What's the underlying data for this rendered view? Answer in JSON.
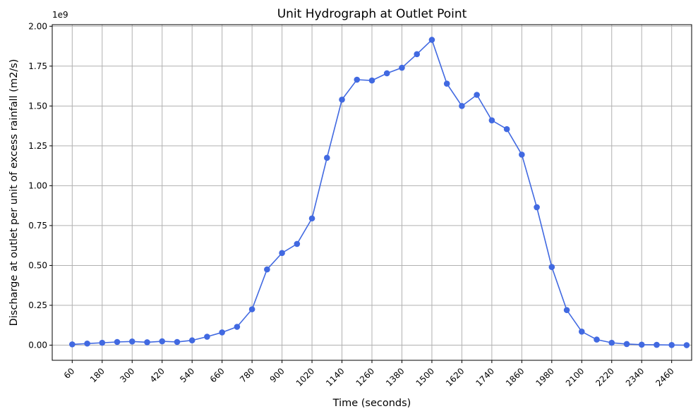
{
  "chart_data": {
    "type": "line",
    "title": "Unit Hydrograph at Outlet Point",
    "xlabel": "Time (seconds)",
    "ylabel": "Discharge at outlet per unit of excess rainfall (m2/s)",
    "y_offset_label": "1e9",
    "grid": true,
    "marker": "circle",
    "line_color": "#4169e1",
    "xlim": [
      -20,
      2540
    ],
    "ylim": [
      -0.095,
      2.01
    ],
    "x_ticks": [
      60,
      180,
      300,
      420,
      540,
      660,
      780,
      900,
      1020,
      1140,
      1260,
      1380,
      1500,
      1620,
      1740,
      1860,
      1980,
      2100,
      2220,
      2340,
      2460
    ],
    "y_ticks": [
      0.0,
      0.25,
      0.5,
      0.75,
      1.0,
      1.25,
      1.5,
      1.75,
      2.0
    ],
    "y_tick_labels": [
      "0.00",
      "0.25",
      "0.50",
      "0.75",
      "1.00",
      "1.25",
      "1.50",
      "1.75",
      "2.00"
    ],
    "series": [
      {
        "x": [
          60,
          120,
          180,
          240,
          300,
          360,
          420,
          480,
          540,
          600,
          660,
          720,
          780,
          840,
          900,
          960,
          1020,
          1080,
          1140,
          1200,
          1260,
          1320,
          1380,
          1440,
          1500,
          1560,
          1620,
          1680,
          1740,
          1800,
          1860,
          1920,
          1980,
          2040,
          2100,
          2160,
          2220,
          2280,
          2340,
          2400,
          2460,
          2520
        ],
        "y": [
          0.005,
          0.01,
          0.015,
          0.02,
          0.023,
          0.018,
          0.024,
          0.02,
          0.03,
          0.053,
          0.08,
          0.115,
          0.225,
          0.475,
          0.578,
          0.635,
          0.795,
          1.175,
          1.54,
          1.665,
          1.66,
          1.705,
          1.74,
          1.825,
          1.915,
          1.64,
          1.5,
          1.57,
          1.41,
          1.355,
          1.195,
          0.865,
          0.49,
          0.22,
          0.085,
          0.035,
          0.015,
          0.007,
          0.003,
          0.002,
          0.001,
          0.0
        ]
      }
    ]
  }
}
